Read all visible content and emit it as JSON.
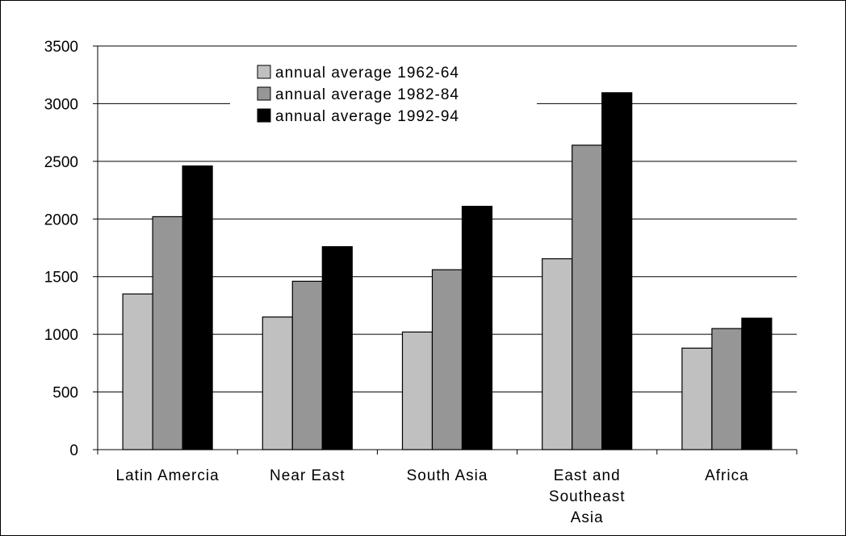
{
  "chart_data": {
    "type": "bar",
    "categories": [
      "Latin Amercia",
      "Near East",
      "South Asia",
      "East and Southeast Asia",
      "Africa"
    ],
    "category_lines": [
      [
        "Latin Amercia"
      ],
      [
        "Near East"
      ],
      [
        "South Asia"
      ],
      [
        "East and",
        "Southeast",
        "Asia"
      ],
      [
        "Africa"
      ]
    ],
    "series": [
      {
        "name": "annual average 1962-64",
        "color": "#c0c0c0",
        "values": [
          1350,
          1150,
          1020,
          1655,
          880
        ]
      },
      {
        "name": "annual average 1982-84",
        "color": "#969696",
        "values": [
          2020,
          1460,
          1560,
          2640,
          1050
        ]
      },
      {
        "name": "annual average 1992-94",
        "color": "#000000",
        "values": [
          2460,
          1760,
          2110,
          3095,
          1140
        ]
      }
    ],
    "ylim": [
      0,
      3500
    ],
    "yticks": [
      0,
      500,
      1000,
      1500,
      2000,
      2500,
      3000,
      3500
    ],
    "grid": true,
    "legend_position": "top-center",
    "title": "",
    "xlabel": "",
    "ylabel": ""
  }
}
